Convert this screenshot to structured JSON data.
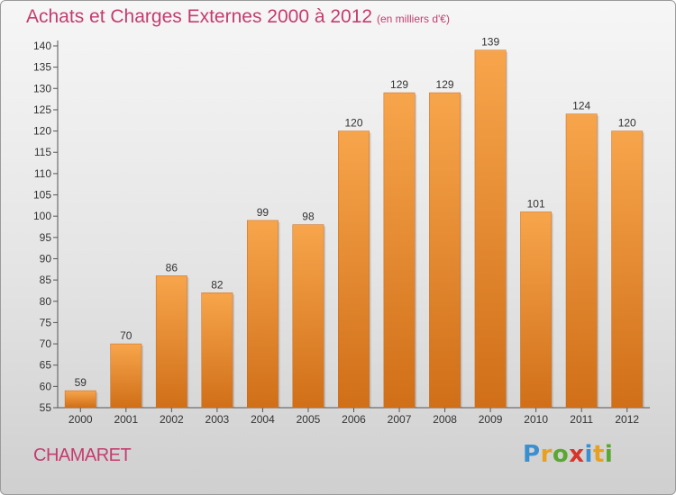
{
  "header": {
    "title": "Achats et Charges Externes 2000 à 2012",
    "subtitle": "(en milliers d'€)"
  },
  "footer": {
    "commune": "CHAMARET",
    "logo_letters": [
      "P",
      "r",
      "o",
      "x",
      "i",
      "t",
      "i"
    ],
    "logo_colors": [
      "#3a8fd0",
      "#e8a020",
      "#5aa832",
      "#d8342a",
      "#3a8fd0",
      "#e8a020",
      "#5aa832"
    ]
  },
  "colors": {
    "bar_top": "#f7a54c",
    "bar_bottom": "#d06f18",
    "accent_text": "#c43c6e"
  },
  "chart_data": {
    "type": "bar",
    "title": "Achats et Charges Externes 2000 à 2012",
    "subtitle": "(en milliers d'€)",
    "categories": [
      "2000",
      "2001",
      "2002",
      "2003",
      "2004",
      "2005",
      "2006",
      "2007",
      "2008",
      "2009",
      "2010",
      "2011",
      "2012"
    ],
    "values": [
      59,
      70,
      86,
      82,
      99,
      98,
      120,
      129,
      129,
      139,
      101,
      124,
      120
    ],
    "ylim": [
      55,
      140
    ],
    "yticks": [
      55,
      60,
      65,
      70,
      75,
      80,
      85,
      90,
      95,
      100,
      105,
      110,
      115,
      120,
      125,
      130,
      135,
      140
    ],
    "grid": false,
    "xlabel": "",
    "ylabel": ""
  }
}
